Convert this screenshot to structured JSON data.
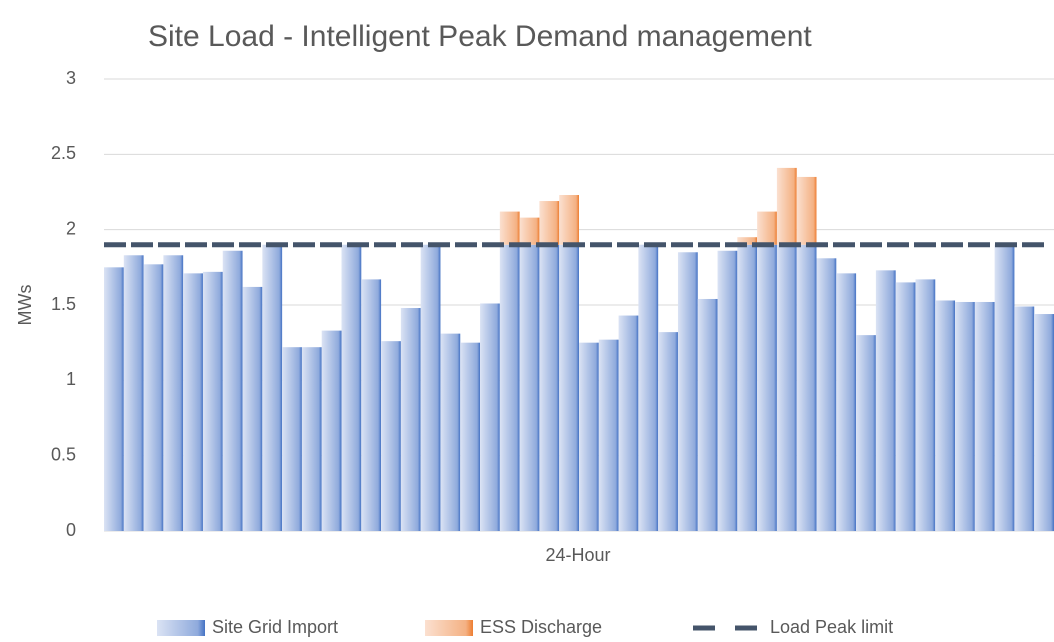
{
  "chart_data": {
    "type": "bar",
    "stacked": true,
    "title": "Site Load - Intelligent Peak Demand management",
    "x_label": "24-Hour",
    "y_label": "MWs",
    "categories": [
      null,
      null,
      null,
      null,
      null,
      null,
      null,
      null,
      null,
      null,
      null,
      null,
      null,
      null,
      null,
      null,
      null,
      null,
      null,
      null,
      null,
      null,
      null,
      null,
      null,
      null,
      null,
      null,
      null,
      null,
      null,
      null,
      null,
      null,
      null,
      null,
      null,
      null,
      null,
      null,
      null,
      null,
      null,
      null,
      null,
      null,
      null,
      null
    ],
    "ylim": [
      0,
      3
    ],
    "yticks": [
      0,
      0.5,
      1,
      1.5,
      2,
      2.5,
      3
    ],
    "grid": true,
    "legend": "bottom",
    "series": [
      {
        "name": "Site Grid Import",
        "type": "bar",
        "color": "#4472c4",
        "values": [
          1.75,
          1.83,
          1.77,
          1.83,
          1.71,
          1.72,
          1.86,
          1.62,
          1.9,
          1.22,
          1.22,
          1.33,
          1.9,
          1.67,
          1.26,
          1.48,
          1.9,
          1.31,
          1.25,
          1.51,
          1.9,
          1.9,
          1.9,
          1.9,
          1.25,
          1.27,
          1.43,
          1.9,
          1.32,
          1.85,
          1.54,
          1.86,
          1.9,
          1.9,
          1.9,
          1.9,
          1.81,
          1.71,
          1.3,
          1.73,
          1.65,
          1.67,
          1.53,
          1.52,
          1.52,
          1.9,
          1.49,
          1.44
        ]
      },
      {
        "name": "ESS Discharge",
        "type": "bar",
        "color": "#ed7d31",
        "values": [
          null,
          null,
          null,
          null,
          null,
          null,
          null,
          null,
          null,
          null,
          null,
          null,
          null,
          null,
          null,
          null,
          null,
          null,
          null,
          null,
          0.22,
          0.18,
          0.29,
          0.33,
          null,
          null,
          null,
          null,
          null,
          null,
          null,
          null,
          0.05,
          0.22,
          0.51,
          0.45,
          null,
          null,
          null,
          null,
          null,
          null,
          null,
          null,
          null,
          null,
          null,
          null
        ]
      },
      {
        "name": "Load Peak limit",
        "type": "line",
        "color": "#44546a",
        "values": [
          1.9,
          1.9,
          1.9,
          1.9,
          1.9,
          1.9,
          1.9,
          1.9,
          1.9,
          1.9,
          1.9,
          1.9,
          1.9,
          1.9,
          1.9,
          1.9,
          1.9,
          1.9,
          1.9,
          1.9,
          1.9,
          1.9,
          1.9,
          1.9,
          1.9,
          1.9,
          1.9,
          1.9,
          1.9,
          1.9,
          1.9,
          1.9,
          1.9,
          1.9,
          1.9,
          1.9,
          1.9,
          1.9,
          1.9,
          1.9,
          1.9,
          1.9,
          1.9,
          1.9,
          1.9,
          1.9,
          1.9,
          1.9
        ]
      }
    ]
  }
}
